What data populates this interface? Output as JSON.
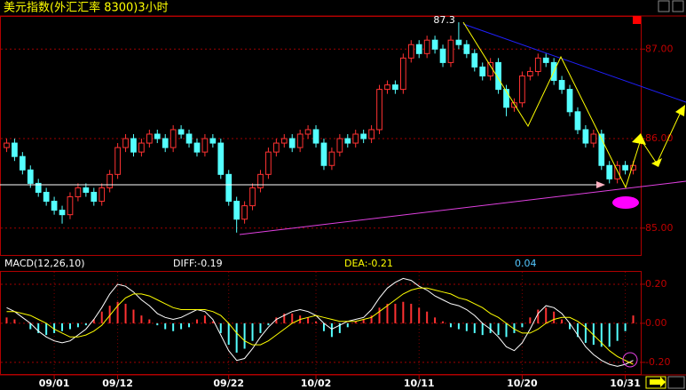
{
  "chart_data": {
    "type": "candlestick",
    "title": "美元指数(外汇汇率 8300)3小时",
    "annotation": "87.3",
    "up_color": "#ff3232",
    "down_color": "#54ffff",
    "categories": [
      null,
      null,
      null,
      null,
      null,
      null,
      "09/01",
      null,
      null,
      null,
      null,
      null,
      null,
      null,
      "09/12",
      null,
      null,
      null,
      null,
      null,
      null,
      null,
      null,
      null,
      null,
      null,
      null,
      null,
      "09/22",
      null,
      null,
      null,
      null,
      null,
      null,
      null,
      null,
      null,
      null,
      "10/02",
      null,
      null,
      null,
      null,
      null,
      null,
      null,
      null,
      null,
      null,
      null,
      null,
      "10/11",
      null,
      null,
      null,
      null,
      null,
      null,
      null,
      null,
      null,
      null,
      null,
      null,
      "10/20",
      null,
      null,
      null,
      null,
      null,
      null,
      null,
      null,
      null,
      null,
      null,
      null,
      "10/31",
      null
    ],
    "candles": [
      [
        85.9,
        86.0,
        85.85,
        85.95
      ],
      [
        85.95,
        86.0,
        85.75,
        85.8
      ],
      [
        85.8,
        85.85,
        85.6,
        85.65
      ],
      [
        85.65,
        85.7,
        85.45,
        85.5
      ],
      [
        85.5,
        85.55,
        85.35,
        85.4
      ],
      [
        85.4,
        85.45,
        85.25,
        85.3
      ],
      [
        85.3,
        85.35,
        85.15,
        85.2
      ],
      [
        85.2,
        85.25,
        85.05,
        85.15
      ],
      [
        85.15,
        85.4,
        85.1,
        85.35
      ],
      [
        85.35,
        85.5,
        85.3,
        85.45
      ],
      [
        85.45,
        85.5,
        85.35,
        85.4
      ],
      [
        85.4,
        85.45,
        85.25,
        85.3
      ],
      [
        85.3,
        85.5,
        85.25,
        85.45
      ],
      [
        85.45,
        85.65,
        85.4,
        85.6
      ],
      [
        85.6,
        85.95,
        85.55,
        85.9
      ],
      [
        85.9,
        86.05,
        85.85,
        86.0
      ],
      [
        86.0,
        86.05,
        85.8,
        85.85
      ],
      [
        85.85,
        86.0,
        85.8,
        85.95
      ],
      [
        85.95,
        86.1,
        85.9,
        86.05
      ],
      [
        86.05,
        86.1,
        85.95,
        86.0
      ],
      [
        86.0,
        86.05,
        85.85,
        85.9
      ],
      [
        85.9,
        86.15,
        85.85,
        86.1
      ],
      [
        86.1,
        86.15,
        86.0,
        86.05
      ],
      [
        86.05,
        86.1,
        85.9,
        85.95
      ],
      [
        85.95,
        86.0,
        85.8,
        85.85
      ],
      [
        85.85,
        86.05,
        85.8,
        86.0
      ],
      [
        86.0,
        86.05,
        85.9,
        85.95
      ],
      [
        85.95,
        86.0,
        85.55,
        85.6
      ],
      [
        85.6,
        85.65,
        85.25,
        85.3
      ],
      [
        85.3,
        85.35,
        84.95,
        85.1
      ],
      [
        85.1,
        85.3,
        85.05,
        85.25
      ],
      [
        85.25,
        85.5,
        85.2,
        85.45
      ],
      [
        85.45,
        85.65,
        85.4,
        85.6
      ],
      [
        85.6,
        85.9,
        85.55,
        85.85
      ],
      [
        85.85,
        86.0,
        85.8,
        85.95
      ],
      [
        85.95,
        86.05,
        85.9,
        86.0
      ],
      [
        86.0,
        86.05,
        85.85,
        85.9
      ],
      [
        85.9,
        86.1,
        85.85,
        86.05
      ],
      [
        86.05,
        86.15,
        86.0,
        86.1
      ],
      [
        86.1,
        86.15,
        85.9,
        85.95
      ],
      [
        85.95,
        86.0,
        85.65,
        85.7
      ],
      [
        85.7,
        85.9,
        85.65,
        85.85
      ],
      [
        85.85,
        86.05,
        85.8,
        86.0
      ],
      [
        86.0,
        86.05,
        85.9,
        85.95
      ],
      [
        85.95,
        86.1,
        85.9,
        86.05
      ],
      [
        86.05,
        86.1,
        85.95,
        86.0
      ],
      [
        86.0,
        86.15,
        85.95,
        86.1
      ],
      [
        86.1,
        86.6,
        86.05,
        86.55
      ],
      [
        86.55,
        86.65,
        86.5,
        86.6
      ],
      [
        86.6,
        86.65,
        86.5,
        86.55
      ],
      [
        86.55,
        86.95,
        86.5,
        86.9
      ],
      [
        86.9,
        87.1,
        86.85,
        87.05
      ],
      [
        87.05,
        87.1,
        86.9,
        86.95
      ],
      [
        86.95,
        87.15,
        86.9,
        87.1
      ],
      [
        87.1,
        87.15,
        86.95,
        87.0
      ],
      [
        87.0,
        87.05,
        86.8,
        86.85
      ],
      [
        86.85,
        87.15,
        86.8,
        87.1
      ],
      [
        87.1,
        87.3,
        87.0,
        87.05
      ],
      [
        87.05,
        87.1,
        86.9,
        86.95
      ],
      [
        86.95,
        87.0,
        86.75,
        86.8
      ],
      [
        86.8,
        86.85,
        86.65,
        86.7
      ],
      [
        86.7,
        86.9,
        86.65,
        86.85
      ],
      [
        86.85,
        86.9,
        86.5,
        86.55
      ],
      [
        86.55,
        86.6,
        86.25,
        86.35
      ],
      [
        86.35,
        86.45,
        86.3,
        86.4
      ],
      [
        86.4,
        86.75,
        86.35,
        86.7
      ],
      [
        86.7,
        86.8,
        86.65,
        86.75
      ],
      [
        86.75,
        86.95,
        86.7,
        86.9
      ],
      [
        86.9,
        86.95,
        86.8,
        86.85
      ],
      [
        86.85,
        86.9,
        86.6,
        86.65
      ],
      [
        86.65,
        86.7,
        86.5,
        86.55
      ],
      [
        86.55,
        86.6,
        86.25,
        86.3
      ],
      [
        86.3,
        86.35,
        86.05,
        86.1
      ],
      [
        86.1,
        86.15,
        85.9,
        85.95
      ],
      [
        85.95,
        86.1,
        85.9,
        86.05
      ],
      [
        86.05,
        86.1,
        85.65,
        85.7
      ],
      [
        85.7,
        85.75,
        85.5,
        85.55
      ],
      [
        85.55,
        85.75,
        85.5,
        85.7
      ],
      [
        85.7,
        85.75,
        85.6,
        85.65
      ],
      [
        85.65,
        85.75,
        85.6,
        85.7
      ]
    ],
    "ylim": [
      84.7,
      87.37
    ],
    "yticks": [
      {
        "value": 87,
        "label": "87.00"
      },
      {
        "value": 86,
        "label": "86.00"
      },
      {
        "value": 85,
        "label": "85.00"
      }
    ],
    "grid": true,
    "macd": {
      "name": "MACD(12,26,10)",
      "diff_label": "DIFF:-0.19",
      "dea_label": "DEA:-0.21",
      "hist_label": "0.04",
      "diff_color": "#ffffff",
      "dea_color": "#ffff00",
      "histogram": [
        0.03,
        0.02,
        0.0,
        -0.03,
        -0.05,
        -0.06,
        -0.05,
        -0.04,
        -0.03,
        -0.02,
        -0.01,
        0.02,
        0.06,
        0.09,
        0.11,
        0.1,
        0.07,
        0.04,
        0.02,
        -0.01,
        -0.03,
        -0.04,
        -0.03,
        -0.02,
        0.02,
        0.04,
        0.01,
        -0.05,
        -0.11,
        -0.15,
        -0.13,
        -0.09,
        -0.05,
        -0.01,
        0.03,
        0.05,
        0.05,
        0.04,
        0.03,
        0.01,
        -0.04,
        -0.07,
        -0.05,
        -0.02,
        0.01,
        0.02,
        0.04,
        0.08,
        0.1,
        0.1,
        0.11,
        0.1,
        0.08,
        0.06,
        0.03,
        0.01,
        -0.02,
        -0.03,
        -0.04,
        -0.05,
        -0.06,
        -0.05,
        -0.06,
        -0.07,
        -0.05,
        -0.02,
        0.03,
        0.07,
        0.08,
        0.06,
        0.02,
        -0.03,
        -0.07,
        -0.1,
        -0.11,
        -0.12,
        -0.12,
        -0.09,
        -0.04,
        0.04
      ],
      "diff": [
        0.08,
        0.06,
        0.03,
        0.0,
        -0.04,
        -0.07,
        -0.09,
        -0.1,
        -0.09,
        -0.06,
        -0.03,
        0.02,
        0.08,
        0.15,
        0.2,
        0.19,
        0.16,
        0.12,
        0.09,
        0.05,
        0.03,
        0.02,
        0.03,
        0.05,
        0.07,
        0.06,
        0.02,
        -0.06,
        -0.14,
        -0.19,
        -0.18,
        -0.13,
        -0.07,
        -0.02,
        0.02,
        0.04,
        0.06,
        0.07,
        0.06,
        0.04,
        0.0,
        -0.03,
        -0.01,
        0.01,
        0.02,
        0.03,
        0.07,
        0.13,
        0.18,
        0.21,
        0.23,
        0.22,
        0.19,
        0.17,
        0.14,
        0.12,
        0.1,
        0.09,
        0.07,
        0.04,
        0.0,
        -0.03,
        -0.07,
        -0.12,
        -0.14,
        -0.1,
        -0.03,
        0.05,
        0.09,
        0.08,
        0.05,
        0.0,
        -0.06,
        -0.12,
        -0.16,
        -0.19,
        -0.21,
        -0.22,
        -0.21,
        -0.19
      ],
      "dea": [
        0.06,
        0.06,
        0.05,
        0.04,
        0.02,
        0.0,
        -0.03,
        -0.05,
        -0.07,
        -0.07,
        -0.06,
        -0.04,
        -0.01,
        0.04,
        0.09,
        0.13,
        0.15,
        0.15,
        0.14,
        0.12,
        0.1,
        0.08,
        0.07,
        0.07,
        0.07,
        0.07,
        0.06,
        0.04,
        0.0,
        -0.05,
        -0.09,
        -0.11,
        -0.11,
        -0.09,
        -0.06,
        -0.03,
        0.0,
        0.02,
        0.03,
        0.04,
        0.03,
        0.02,
        0.01,
        0.01,
        0.01,
        0.02,
        0.03,
        0.06,
        0.09,
        0.12,
        0.15,
        0.17,
        0.18,
        0.18,
        0.17,
        0.16,
        0.15,
        0.13,
        0.12,
        0.1,
        0.08,
        0.05,
        0.03,
        0.0,
        -0.03,
        -0.05,
        -0.05,
        -0.03,
        0.0,
        0.02,
        0.03,
        0.03,
        0.01,
        -0.02,
        -0.06,
        -0.1,
        -0.14,
        -0.17,
        -0.19,
        -0.21
      ],
      "ylim": [
        -0.255,
        0.268
      ],
      "yticks": [
        {
          "value": 0.2,
          "label": "0.20"
        },
        {
          "value": 0,
          "label": "0.00"
        },
        {
          "value": -0.2,
          "label": "-0.20"
        }
      ]
    }
  }
}
